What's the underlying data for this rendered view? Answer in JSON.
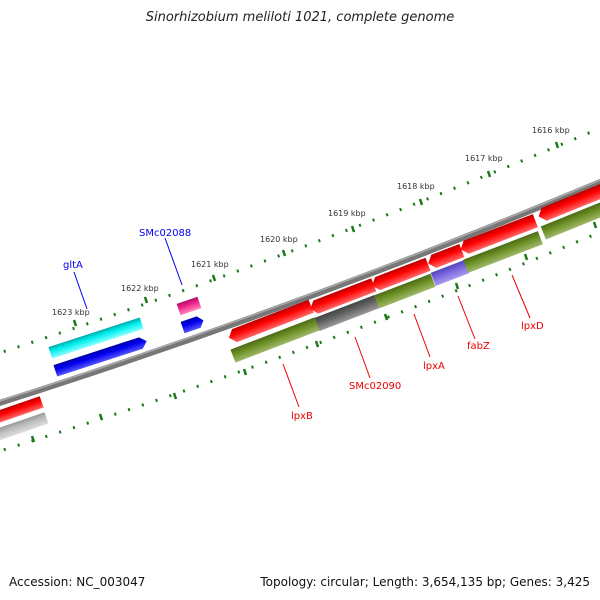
{
  "title": "Sinorhizobium meliloti 1021, complete genome",
  "footer": {
    "accession": "Accession: NC_003047",
    "summary": "Topology: circular; Length: 3,654,135 bp; Genes: 3,425"
  },
  "ticks": [
    "1616 kbp",
    "1617 kbp",
    "1618 kbp",
    "1619 kbp",
    "1620 kbp",
    "1621 kbp",
    "1622 kbp",
    "1623 kbp"
  ],
  "genes": {
    "forward": [
      "gltA",
      "SMc02088"
    ],
    "reverse": [
      "lpxB",
      "SMc02090",
      "lpxA",
      "fabZ",
      "lpxD"
    ]
  },
  "colors": {
    "forward_label": "#0000ee",
    "reverse_label": "#ee0000",
    "cds_red": "#ee0000",
    "cds_blue": "#0000ee",
    "cds_cyan": "#00eeee",
    "cds_pink": "#ee2288",
    "cds_green": "#6b8e23",
    "cds_gray": "#606060",
    "cds_purple": "#7766dd",
    "tick": "#1a7a1a"
  }
}
